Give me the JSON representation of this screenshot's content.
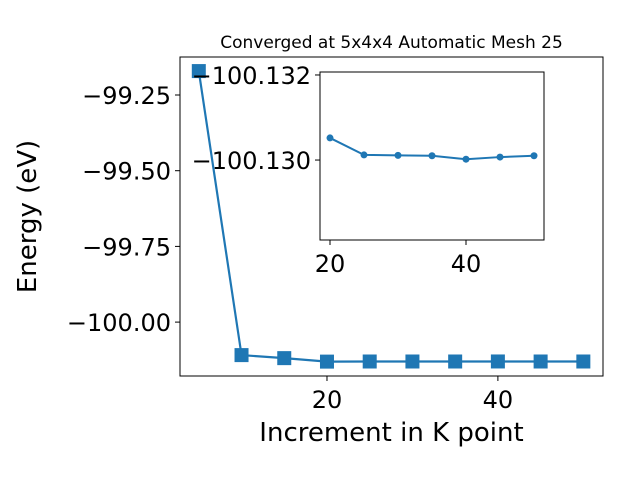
{
  "chart_data": [
    {
      "type": "line",
      "title": "Converged at 5x4x4 Automatic Mesh 25",
      "x_label": "Increment in K point",
      "y_label": "Energy (eV)",
      "x": [
        5,
        10,
        15,
        20,
        25,
        30,
        35,
        40,
        45,
        50
      ],
      "series": [
        {
          "color": "#1f77b4",
          "marker": "square",
          "values": [
            -99.171,
            -100.109,
            -100.119,
            -100.1305,
            -100.1301,
            -100.1301,
            -100.1301,
            -100.13,
            -100.1301,
            -100.1301
          ]
        }
      ],
      "xlim": [
        2.8,
        52.3
      ],
      "xticks": [
        20,
        40
      ],
      "ylim": [
        -100.178,
        -99.1245
      ],
      "yticks": [
        {
          "value": -100.0,
          "label": "−100.00"
        },
        {
          "value": -99.75,
          "label": "−99.75"
        },
        {
          "value": -99.5,
          "label": "−99.50"
        },
        {
          "value": -99.25,
          "label": "−99.25"
        }
      ]
    },
    {
      "type": "line",
      "x": [
        20,
        25,
        30,
        35,
        40,
        45,
        50
      ],
      "series": [
        {
          "color": "#1f77b4",
          "marker": "circle",
          "values": [
            -100.13052,
            -100.13012,
            -100.13011,
            -100.1301,
            -100.13002,
            -100.13007,
            -100.1301
          ]
        }
      ],
      "xlim": [
        18.53,
        51.47
      ],
      "xticks": [
        20,
        40
      ],
      "ylim": [
        -100.12812,
        -100.13207
      ],
      "yticks": [
        {
          "value": -100.13,
          "label": "−100.130"
        },
        {
          "value": -100.132,
          "label": "−100.132"
        }
      ]
    }
  ]
}
